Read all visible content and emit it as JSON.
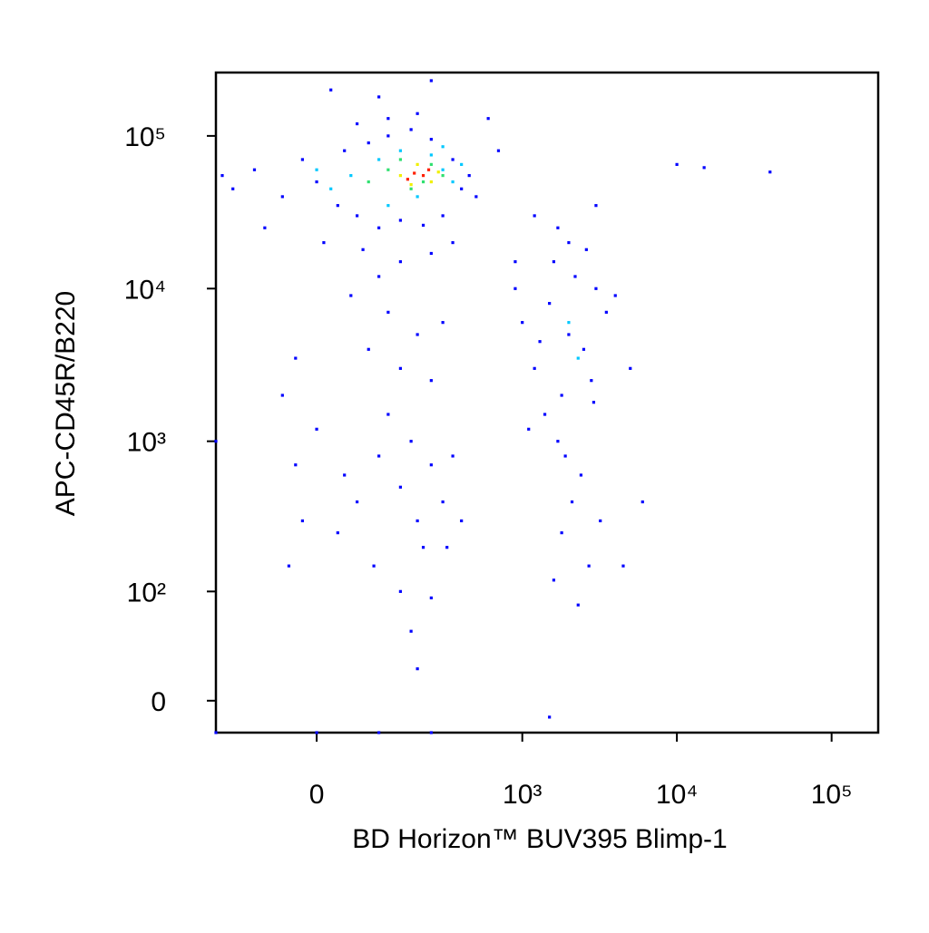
{
  "chart_data": {
    "type": "scatter",
    "xlabel": "BD Horizon™ BUV395 Blimp-1",
    "ylabel": "APC-CD45R/B220",
    "xscale": "biexponential",
    "yscale": "biexponential",
    "xlim": [
      -200,
      200000
    ],
    "ylim": [
      -20,
      260000
    ],
    "xticks": [
      0,
      {
        "value": 1000,
        "label": "10³"
      },
      {
        "value": 10000,
        "label": "10⁴"
      },
      {
        "value": 100000,
        "label": "10⁵"
      }
    ],
    "yticks": [
      0,
      {
        "value": 100,
        "label": "10²"
      },
      {
        "value": 1000,
        "label": "10³"
      },
      {
        "value": 10000,
        "label": "10⁴"
      },
      {
        "value": 100000,
        "label": "10⁵"
      }
    ],
    "series": [
      {
        "color": "#0000ff",
        "x": [
          -100,
          -50,
          -20,
          0,
          30,
          40,
          60,
          80,
          100,
          120,
          150,
          180,
          220,
          250,
          300,
          350,
          400,
          450,
          500,
          -150,
          -80,
          10,
          70,
          150,
          250,
          350,
          120,
          60,
          200,
          700,
          600,
          -180,
          20,
          250,
          100,
          50,
          120,
          200,
          80,
          300,
          150,
          250,
          -50,
          -30,
          100,
          100,
          150,
          200,
          250,
          60,
          30,
          120,
          180,
          300,
          220,
          90,
          150,
          250,
          40,
          -20,
          -40,
          0,
          350,
          400,
          180,
          200,
          -30,
          -200,
          320,
          1500,
          2000,
          1200,
          1800,
          2500,
          3000,
          1600,
          2200,
          1000,
          1400,
          2800,
          3500,
          2000,
          1700,
          2600,
          4000,
          1300,
          900,
          1100,
          1900,
          2400,
          2100,
          1800,
          2700,
          1600,
          3200,
          2300,
          4500,
          6000,
          1200,
          900,
          3000,
          1500,
          1700,
          2900,
          5000,
          10000,
          15000,
          40000,
          -200,
          0,
          100,
          250
        ],
        "y": [
          60000,
          40000,
          70000,
          50000,
          35000,
          80000,
          30000,
          90000,
          25000,
          100000,
          28000,
          110000,
          26000,
          95000,
          30000,
          70000,
          45000,
          55000,
          40000,
          45000,
          25000,
          20000,
          18000,
          15000,
          17000,
          20000,
          130000,
          120000,
          140000,
          80000,
          130000,
          55000,
          200000,
          230000,
          180000,
          9000,
          7000,
          5000,
          4000,
          6000,
          3000,
          2500,
          2000,
          3500,
          12000,
          800,
          500,
          300,
          700,
          400,
          250,
          1500,
          1000,
          400,
          200,
          150,
          100,
          90,
          600,
          300,
          150,
          1200,
          800,
          300,
          50,
          20,
          700,
          1000,
          200,
          8000,
          5000,
          3000,
          2000,
          4000,
          10000,
          15000,
          12000,
          6000,
          1500,
          2500,
          7000,
          20000,
          25000,
          18000,
          9000,
          4500,
          10000,
          1200,
          800,
          600,
          400,
          250,
          150,
          120,
          300,
          80,
          150,
          400,
          30000,
          15000,
          35000,
          -10,
          1000,
          1800,
          3000,
          65000,
          62000,
          58000,
          -20,
          -20,
          -20,
          -20
        ]
      },
      {
        "color": "#00c8ff",
        "x": [
          100,
          200,
          300,
          50,
          350,
          150,
          250,
          20,
          400,
          120,
          0,
          300,
          2000,
          2300
        ],
        "y": [
          70000,
          40000,
          60000,
          55000,
          50000,
          80000,
          75000,
          45000,
          65000,
          35000,
          60000,
          85000,
          6000,
          3500
        ]
      },
      {
        "color": "#30e070",
        "x": [
          120,
          180,
          250,
          80,
          300,
          150,
          220
        ],
        "y": [
          60000,
          45000,
          65000,
          50000,
          55000,
          70000,
          50000
        ]
      },
      {
        "color": "#f0f000",
        "x": [
          150,
          200,
          250,
          180,
          280
        ],
        "y": [
          55000,
          65000,
          50000,
          48000,
          58000
        ]
      },
      {
        "color": "#ff2000",
        "x": [
          190,
          220,
          170,
          240
        ],
        "y": [
          57000,
          55000,
          52000,
          60000
        ]
      }
    ]
  }
}
